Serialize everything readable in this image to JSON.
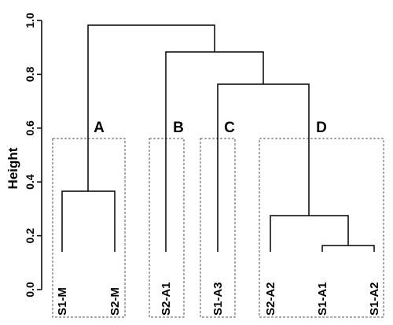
{
  "y_axis": {
    "label": "Height",
    "ticks": [
      {
        "value": 0.0,
        "label": "0.0"
      },
      {
        "value": 0.2,
        "label": "0.2"
      },
      {
        "value": 0.4,
        "label": "0.4"
      },
      {
        "value": 0.6,
        "label": "0.6"
      },
      {
        "value": 0.8,
        "label": "0.8"
      },
      {
        "value": 1.0,
        "label": "1.0"
      }
    ],
    "range": [
      0,
      1
    ]
  },
  "leaves": [
    "S1-M",
    "S2-M",
    "S2-A1",
    "S1-A3",
    "S2-A2",
    "S1-A1",
    "S1-A2"
  ],
  "merges": [
    {
      "left": "S1-M",
      "right": "S2-M",
      "height": 0.36
    },
    {
      "left": "S1-A1",
      "right": "S1-A2",
      "height": 0.17
    },
    {
      "left": "S2-A2",
      "right": "S1-A1+S1-A2",
      "height": 0.27
    },
    {
      "left": "S1-A3",
      "right": "S2-A2+S1-A1+S1-A2",
      "height": 0.76
    },
    {
      "left": "S2-A1",
      "right": "C+D",
      "height": 0.88
    },
    {
      "left": "A",
      "right": "B+C+D",
      "height": 0.97
    }
  ],
  "clusters": [
    {
      "label": "A",
      "members": [
        "S1-M",
        "S2-M"
      ]
    },
    {
      "label": "B",
      "members": [
        "S2-A1"
      ]
    },
    {
      "label": "C",
      "members": [
        "S1-A3"
      ]
    },
    {
      "label": "D",
      "members": [
        "S2-A2",
        "S1-A1",
        "S1-A2"
      ]
    }
  ]
}
